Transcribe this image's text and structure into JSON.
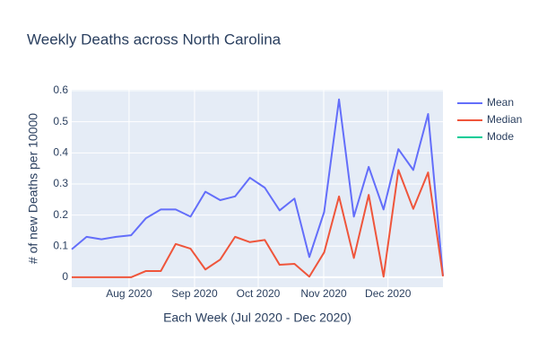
{
  "chart_data": {
    "type": "line",
    "title": "Weekly Deaths across North Carolina",
    "x_label": "Each Week (Jul 2020 - Dec 2020)",
    "y_label": "# of new Deaths per 10000",
    "xlim": [
      0,
      25
    ],
    "xticks": [
      {
        "value": 3.86,
        "label": "Aug 2020"
      },
      {
        "value": 8.27,
        "label": "Sep 2020"
      },
      {
        "value": 12.56,
        "label": "Oct 2020"
      },
      {
        "value": 16.97,
        "label": "Nov 2020"
      },
      {
        "value": 21.3,
        "label": "Dec 2020"
      }
    ],
    "ylim": [
      -0.032,
      0.603
    ],
    "yticks": [
      0,
      0.1,
      0.2,
      0.3,
      0.4,
      0.5,
      0.6
    ],
    "grid": true,
    "legend": "right",
    "series": [
      {
        "name": "Mean",
        "color": "#636efa",
        "values": [
          0.09,
          0.13,
          0.122,
          0.13,
          0.135,
          0.19,
          0.218,
          0.218,
          0.195,
          0.275,
          0.248,
          0.26,
          0.32,
          0.288,
          0.215,
          0.253,
          0.065,
          0.21,
          0.572,
          0.195,
          0.355,
          0.218,
          0.412,
          0.345,
          0.525,
          0.005
        ]
      },
      {
        "name": "Median",
        "color": "#ef553b",
        "values": [
          0,
          0,
          0,
          0,
          0,
          0.02,
          0.02,
          0.107,
          0.092,
          0.025,
          0.057,
          0.13,
          0.113,
          0.12,
          0.04,
          0.043,
          0.002,
          0.08,
          0.26,
          0.062,
          0.265,
          0.002,
          0.345,
          0.22,
          0.337,
          0.003
        ]
      },
      {
        "name": "Mode",
        "color": "#00cc96",
        "values": [
          null,
          null,
          null,
          null,
          null,
          null,
          null,
          null,
          null,
          null,
          null,
          null,
          null,
          null,
          null,
          null,
          null,
          null,
          null,
          null,
          null,
          null,
          null,
          null,
          null,
          null
        ]
      }
    ]
  }
}
